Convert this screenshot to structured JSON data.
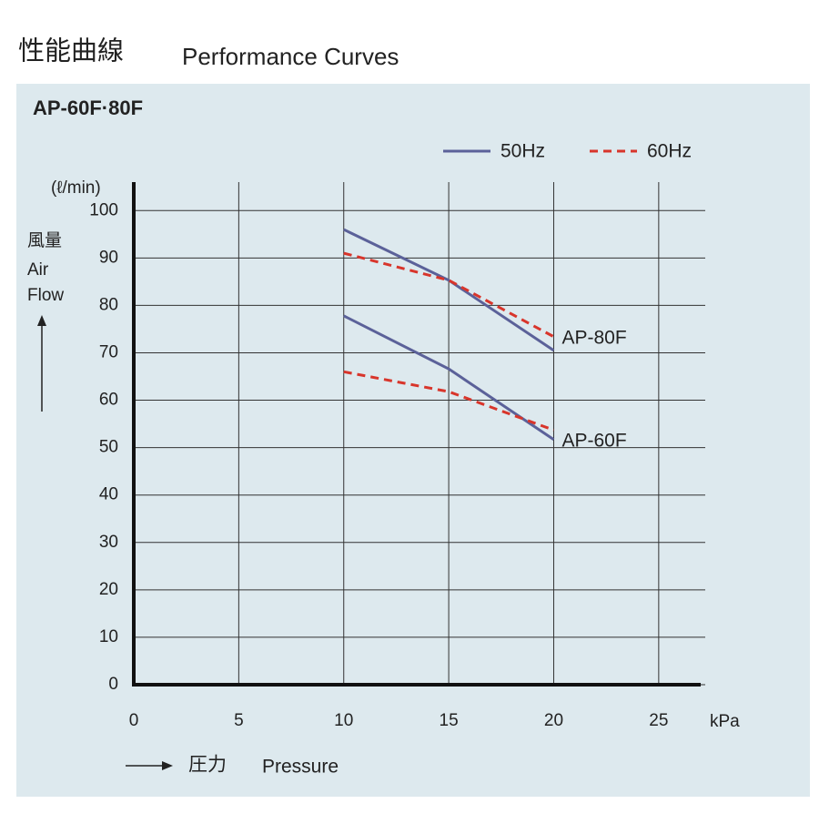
{
  "chart_data": {
    "type": "line",
    "title": "性能曲線",
    "title_en": "Performance Curves",
    "subtitle": "AP-60F·80F",
    "y_unit": "(ℓ/min)",
    "y_label": [
      "風量",
      "Air",
      "Flow"
    ],
    "x_unit": "kPa",
    "x_label": [
      "圧力",
      "Pressure"
    ],
    "x": [
      10,
      15,
      20
    ],
    "xlim": [
      0,
      27
    ],
    "xticks": [
      0,
      5,
      10,
      15,
      20,
      25
    ],
    "ylim": [
      0,
      106
    ],
    "yticks": [
      0,
      10,
      20,
      30,
      40,
      50,
      60,
      70,
      80,
      90,
      100
    ],
    "grid": true,
    "legend": [
      {
        "label": "50Hz",
        "color": "#5b6199",
        "dashed": false
      },
      {
        "label": "60Hz",
        "color": "#d8352b",
        "dashed": true
      }
    ],
    "series": [
      {
        "legend": 0,
        "values": [
          96,
          85.3,
          70.5
        ]
      },
      {
        "legend": 1,
        "label": "AP-80F",
        "values": [
          91,
          85.3,
          73.4
        ]
      },
      {
        "legend": 0,
        "label": "AP-60F",
        "values": [
          77.8,
          66.6,
          51.7
        ]
      },
      {
        "legend": 1,
        "values": [
          66,
          61.8,
          53.7
        ]
      }
    ]
  }
}
